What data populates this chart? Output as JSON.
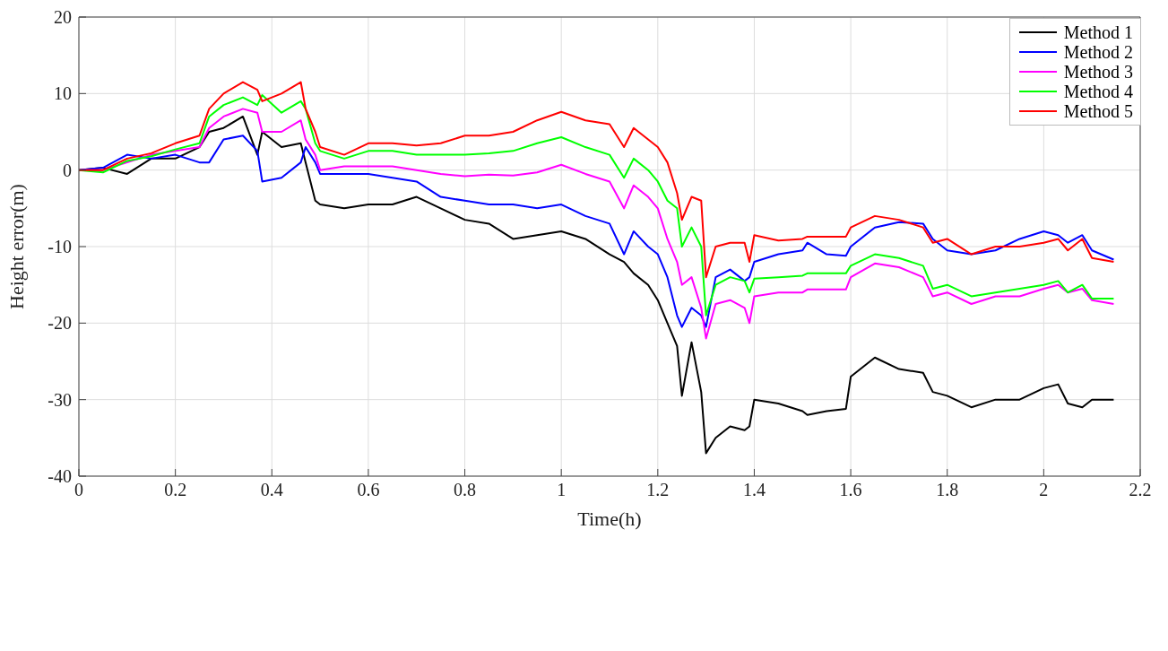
{
  "chart_data": {
    "type": "line",
    "xlabel": "Time(h)",
    "ylabel": "Height error(m)",
    "x": [
      0,
      0.05,
      0.1,
      0.15,
      0.2,
      0.25,
      0.27,
      0.3,
      0.34,
      0.37,
      0.38,
      0.42,
      0.46,
      0.47,
      0.49,
      0.5,
      0.55,
      0.6,
      0.65,
      0.7,
      0.75,
      0.8,
      0.85,
      0.9,
      0.95,
      1.0,
      1.05,
      1.1,
      1.13,
      1.15,
      1.18,
      1.2,
      1.22,
      1.24,
      1.25,
      1.27,
      1.29,
      1.3,
      1.32,
      1.35,
      1.38,
      1.39,
      1.4,
      1.45,
      1.5,
      1.51,
      1.55,
      1.59,
      1.6,
      1.65,
      1.7,
      1.75,
      1.77,
      1.8,
      1.85,
      1.9,
      1.95,
      2.0,
      2.03,
      2.05,
      2.08,
      2.1,
      2.145
    ],
    "series": [
      {
        "name": "Method 1",
        "color": "#000000",
        "values": [
          0,
          0.3,
          -0.5,
          1.5,
          1.5,
          3,
          5,
          5.5,
          7,
          2,
          5,
          3,
          3.5,
          1,
          -4,
          -4.5,
          -5,
          -4.5,
          -4.5,
          -3.5,
          -5,
          -6.5,
          -7,
          -9,
          -8.5,
          -8,
          -9,
          -11,
          -12,
          -13.5,
          -15,
          -17,
          -20,
          -23,
          -29.5,
          -22.5,
          -29,
          -37,
          -35,
          -33.5,
          -34,
          -33.5,
          -30,
          -30.5,
          -31.5,
          -32,
          -31.5,
          -31.2,
          -27,
          -24.5,
          -26,
          -26.5,
          -29,
          -29.5,
          -31,
          -30,
          -30,
          -28.5,
          -28,
          -30.5,
          -31,
          -30,
          -30
        ]
      },
      {
        "name": "Method 2",
        "color": "#0000ff",
        "values": [
          0,
          0.3,
          2,
          1.5,
          2,
          1,
          1,
          4,
          4.5,
          2.5,
          -1.5,
          -1,
          1,
          3,
          1,
          -0.5,
          -0.5,
          -0.5,
          -1,
          -1.5,
          -3.5,
          -4,
          -4.5,
          -4.5,
          -5,
          -4.5,
          -6,
          -7,
          -11,
          -8,
          -10,
          -11,
          -14,
          -19,
          -20.5,
          -18,
          -19,
          -20.5,
          -14,
          -13,
          -14.5,
          -14,
          -12,
          -11,
          -10.5,
          -9.5,
          -11,
          -11.2,
          -10,
          -7.5,
          -6.8,
          -7,
          -9,
          -10.5,
          -11,
          -10.5,
          -9,
          -8,
          -8.5,
          -9.5,
          -8.5,
          -10.5,
          -11.7
        ]
      },
      {
        "name": "Method 3",
        "color": "#ff00ff",
        "values": [
          0,
          0,
          1,
          2,
          2.5,
          3,
          5.5,
          7,
          8,
          7.5,
          5,
          5,
          6.5,
          4,
          2,
          0,
          0.5,
          0.5,
          0.5,
          0,
          -0.5,
          -0.8,
          -0.6,
          -0.7,
          -0.3,
          0.7,
          -0.5,
          -1.5,
          -5,
          -2,
          -3.5,
          -5,
          -9,
          -12,
          -15,
          -14,
          -18,
          -22,
          -17.5,
          -17,
          -18,
          -20,
          -16.5,
          -16,
          -16,
          -15.6,
          -15.6,
          -15.6,
          -14,
          -12.2,
          -12.7,
          -14,
          -16.5,
          -16,
          -17.5,
          -16.5,
          -16.5,
          -15.5,
          -15,
          -16,
          -15.5,
          -17,
          -17.5
        ]
      },
      {
        "name": "Method 4",
        "color": "#00ff00",
        "values": [
          0,
          -0.3,
          1.2,
          1.8,
          2.7,
          3.5,
          7,
          8.5,
          9.5,
          8.5,
          9.8,
          7.5,
          9,
          8,
          3.5,
          2.5,
          1.5,
          2.5,
          2.5,
          2,
          2,
          2,
          2.2,
          2.5,
          3.5,
          4.3,
          3,
          2,
          -1,
          1.5,
          0,
          -1.5,
          -4,
          -5,
          -10,
          -7.5,
          -10,
          -19,
          -15,
          -14,
          -14.5,
          -16,
          -14.2,
          -14,
          -13.8,
          -13.5,
          -13.5,
          -13.5,
          -12.5,
          -11,
          -11.5,
          -12.5,
          -15.5,
          -15,
          -16.5,
          -16,
          -15.5,
          -15,
          -14.5,
          -16,
          -15,
          -16.8,
          -16.8
        ]
      },
      {
        "name": "Method 5",
        "color": "#ff0000",
        "values": [
          0,
          0,
          1.5,
          2.2,
          3.5,
          4.5,
          8,
          10,
          11.5,
          10.5,
          9,
          10,
          11.5,
          8,
          5,
          3,
          2,
          3.5,
          3.5,
          3.2,
          3.5,
          4.5,
          4.5,
          5,
          6.5,
          7.6,
          6.5,
          6,
          3,
          5.5,
          4,
          3,
          1,
          -3,
          -6.5,
          -3.5,
          -4,
          -14,
          -10,
          -9.5,
          -9.5,
          -12,
          -8.5,
          -9.2,
          -9,
          -8.7,
          -8.7,
          -8.7,
          -7.5,
          -6,
          -6.5,
          -7.5,
          -9.5,
          -9,
          -11,
          -10,
          -10,
          -9.5,
          -9,
          -10.5,
          -9,
          -11.5,
          -12
        ]
      }
    ],
    "xlim": [
      0,
      2.2
    ],
    "xticks": [
      0,
      0.2,
      0.4,
      0.6,
      0.8,
      1,
      1.2,
      1.4,
      1.6,
      1.8,
      2,
      2.2
    ],
    "ylim": [
      -40,
      20
    ],
    "yticks": [
      -40,
      -30,
      -20,
      -10,
      0,
      10,
      20
    ],
    "grid": true,
    "legend": "top right",
    "line_style": "solid",
    "marker": "none"
  }
}
